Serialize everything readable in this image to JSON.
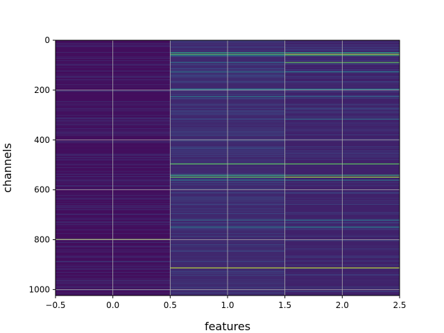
{
  "chart_data": {
    "type": "heatmap",
    "title": "",
    "xlabel": "features",
    "ylabel": "channels",
    "colormap": "viridis",
    "xlim": [
      -0.5,
      2.5
    ],
    "ylim": [
      1024,
      0
    ],
    "y_inverted": true,
    "columns": [
      0,
      1,
      2
    ],
    "rows": 1024,
    "grid": true,
    "xticks": [
      -0.5,
      0.0,
      0.5,
      1.0,
      1.5,
      2.0,
      2.5
    ],
    "xtick_labels": [
      "−0.5",
      "0.0",
      "0.5",
      "1.0",
      "1.5",
      "2.0",
      "2.5"
    ],
    "yticks": [
      0,
      200,
      400,
      600,
      800,
      1000
    ],
    "ytick_labels": [
      "0",
      "200",
      "400",
      "600",
      "800",
      "1000"
    ],
    "base_values": [
      0.04,
      0.12,
      0.1
    ],
    "bright_channels": [
      {
        "channel": 48,
        "values": [
          0.05,
          0.55,
          0.55
        ]
      },
      {
        "channel": 55,
        "values": [
          0.05,
          0.7,
          0.85
        ]
      },
      {
        "channel": 60,
        "values": [
          0.05,
          0.45,
          0.6
        ]
      },
      {
        "channel": 88,
        "values": [
          0.05,
          0.35,
          0.75
        ]
      },
      {
        "channel": 126,
        "values": [
          0.05,
          0.4,
          0.4
        ]
      },
      {
        "channel": 195,
        "values": [
          0.05,
          0.45,
          0.45
        ]
      },
      {
        "channel": 225,
        "values": [
          0.05,
          0.4,
          0.3
        ]
      },
      {
        "channel": 315,
        "values": [
          0.05,
          0.25,
          0.35
        ]
      },
      {
        "channel": 495,
        "values": [
          0.05,
          0.75,
          0.75
        ]
      },
      {
        "channel": 540,
        "values": [
          0.05,
          0.6,
          0.6
        ]
      },
      {
        "channel": 548,
        "values": [
          0.05,
          0.75,
          0.85
        ]
      },
      {
        "channel": 560,
        "values": [
          0.05,
          0.4,
          0.4
        ]
      },
      {
        "channel": 720,
        "values": [
          0.05,
          0.35,
          0.4
        ]
      },
      {
        "channel": 748,
        "values": [
          0.05,
          0.4,
          0.45
        ]
      },
      {
        "channel": 798,
        "values": [
          0.85,
          0.1,
          0.1
        ]
      },
      {
        "channel": 912,
        "values": [
          0.05,
          0.9,
          0.9
        ]
      }
    ]
  }
}
